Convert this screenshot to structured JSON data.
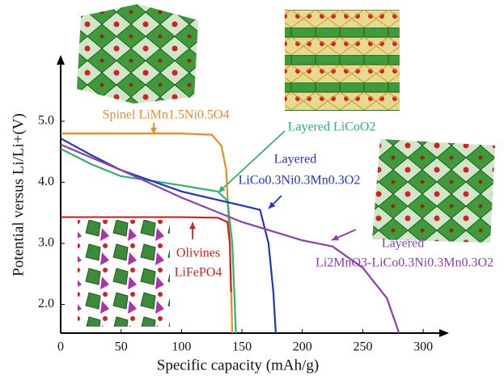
{
  "chart_data": {
    "type": "line",
    "x_label": "Specific capacity (mAh/g)",
    "y_label": "Potential versus Li/Li+(V)",
    "xlim": [
      0,
      320
    ],
    "xticks": [
      0,
      50,
      100,
      150,
      200,
      250,
      300
    ],
    "ylim": [
      1.53,
      6.06
    ],
    "yticks": [
      {
        "value": 2,
        "label": "2.0"
      },
      {
        "value": 3,
        "label": "3.0"
      },
      {
        "value": 4,
        "label": "4.0"
      },
      {
        "value": 5,
        "label": "5.0"
      }
    ],
    "series": [
      {
        "label": [
          "Spinel LiMn1.5Ni0.5O4"
        ],
        "color": "#ef8a22",
        "x": [
          0,
          100,
          125,
          133,
          137,
          140,
          142
        ],
        "values": [
          4.8,
          4.8,
          4.78,
          4.6,
          4.2,
          3.0,
          1.53
        ]
      },
      {
        "label": [
          "Layered LiCoO2"
        ],
        "color": "#2bb56a",
        "x": [
          0,
          25,
          50,
          100,
          130,
          138,
          142,
          145
        ],
        "values": [
          4.55,
          4.3,
          4.1,
          3.95,
          3.85,
          3.7,
          3.0,
          1.53
        ]
      },
      {
        "label": [
          "Layered",
          "LiCo0.3Ni0.3Mn0.3O2"
        ],
        "color": "#2233cc",
        "x": [
          0,
          25,
          50,
          100,
          150,
          165,
          172,
          176,
          178
        ],
        "values": [
          4.72,
          4.45,
          4.2,
          3.85,
          3.62,
          3.55,
          3.0,
          2.2,
          1.53
        ]
      },
      {
        "label": [
          "Olivines",
          "LiFePO4"
        ],
        "color": "#cc2222",
        "x": [
          0,
          100,
          130,
          138,
          140,
          141
        ],
        "values": [
          3.43,
          3.43,
          3.42,
          3.35,
          3.0,
          2.2
        ]
      },
      {
        "label": [
          "Layered",
          "Li2MnO3-LiCo0.3Ni0.3Mn0.3O2"
        ],
        "color": "#8a3fb5",
        "x": [
          0,
          20,
          50,
          100,
          150,
          200,
          225,
          250,
          270,
          280
        ],
        "values": [
          4.62,
          4.45,
          4.2,
          3.75,
          3.35,
          3.05,
          2.95,
          2.6,
          2.1,
          1.53
        ]
      }
    ]
  }
}
